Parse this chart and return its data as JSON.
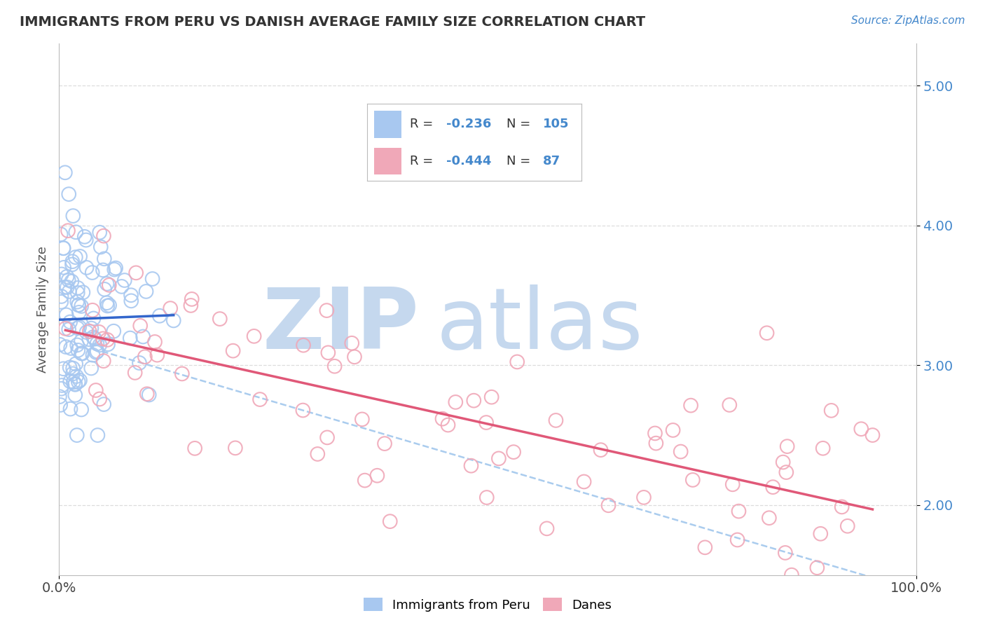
{
  "title": "IMMIGRANTS FROM PERU VS DANISH AVERAGE FAMILY SIZE CORRELATION CHART",
  "source_text": "Source: ZipAtlas.com",
  "ylabel": "Average Family Size",
  "xlim": [
    0.0,
    100.0
  ],
  "ylim": [
    1.5,
    5.3
  ],
  "yticks": [
    2.0,
    3.0,
    4.0,
    5.0
  ],
  "xtick_labels": [
    "0.0%",
    "100.0%"
  ],
  "ytick_labels": [
    "2.00",
    "3.00",
    "4.00",
    "5.00"
  ],
  "blue_R": -0.236,
  "blue_N": 105,
  "pink_R": -0.444,
  "pink_N": 87,
  "blue_color": "#A8C8F0",
  "pink_color": "#F0A8B8",
  "blue_line_color": "#3366CC",
  "pink_line_color": "#E05878",
  "dash_line_color": "#AACCEE",
  "watermark_bold": "ZIP",
  "watermark_light": "atlas",
  "watermark_color": "#C5D8EE",
  "background_color": "#FFFFFF",
  "legend_label_blue": "Immigrants from Peru",
  "legend_label_pink": "Danes",
  "title_color": "#333333",
  "source_color": "#4488CC",
  "axis_label_color": "#555555",
  "ytick_color": "#4488CC",
  "grid_color": "#DDDDDD",
  "spine_color": "#BBBBBB"
}
